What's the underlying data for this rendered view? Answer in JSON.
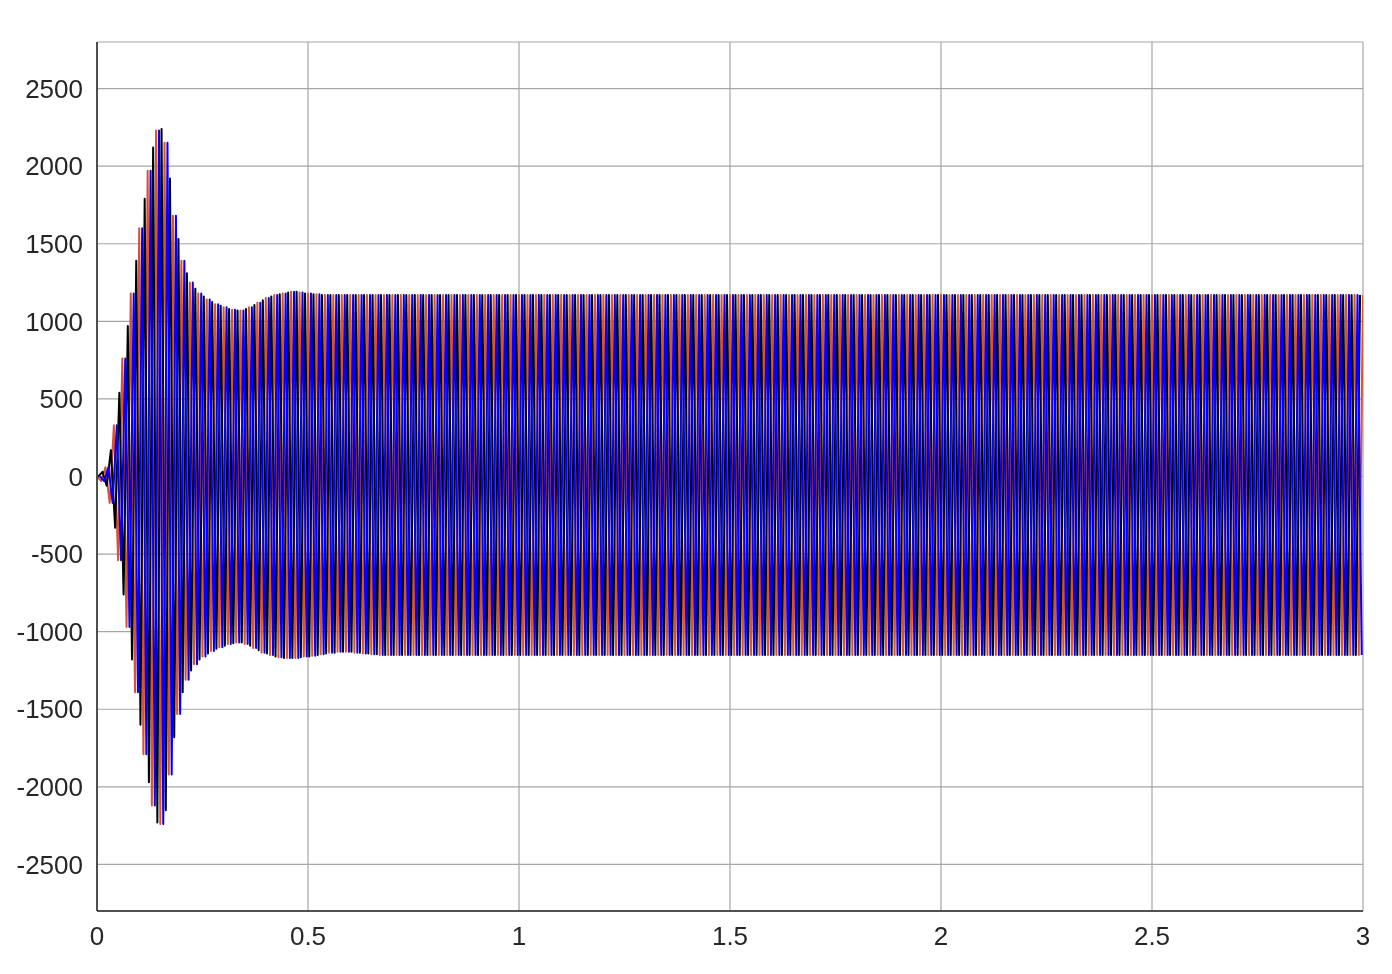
{
  "chart_data": {
    "type": "line",
    "xlim": [
      0,
      3
    ],
    "xticks": [
      0,
      0.5,
      1,
      1.5,
      2,
      2.5,
      3
    ],
    "ylim": [
      -2800,
      2800
    ],
    "yticks": [
      -2500,
      -2000,
      -1500,
      -1000,
      -500,
      0,
      500,
      1000,
      1500,
      2000,
      2500
    ],
    "grid": true,
    "series": [
      {
        "color": "#d9503f",
        "x": [
          0,
          0.01,
          0.02,
          0.03,
          0.04,
          0.05,
          0.06,
          0.07,
          0.08,
          0.09,
          0.1,
          0.11,
          0.12,
          0.13,
          0.14,
          0.15,
          0.16,
          0.17,
          0.18,
          0.19,
          0.2,
          0.21,
          0.22,
          0.23,
          0.24,
          0.25,
          0.26,
          0.27,
          0.28,
          0.29,
          0.3,
          0.31,
          0.32,
          0.33,
          0.34,
          0.35,
          0.36,
          0.37,
          0.38,
          0.39,
          0.4,
          0.41,
          0.42,
          0.43,
          0.44,
          0.45,
          0.46,
          0.47,
          0.48,
          0.49,
          0.5,
          0.51,
          0.52,
          0.53,
          0.54,
          0.55,
          0.56,
          0.57,
          0.58,
          0.59,
          0.6,
          0.61,
          0.62,
          0.63,
          0.64,
          0.65,
          0.66,
          0.67,
          0.68,
          0.69,
          0.7,
          0.71,
          0.72,
          0.73,
          0.74,
          0.75,
          0.76,
          0.77,
          0.78,
          0.79,
          0.8,
          0.81,
          0.82,
          0.83,
          0.84,
          0.85,
          0.86,
          0.87,
          0.88,
          0.89,
          0.9,
          0.91,
          0.92,
          0.93,
          0.94,
          0.95,
          0.96,
          0.97,
          0.98,
          0.99,
          1,
          1.01,
          1.02,
          1.03,
          1.04,
          1.05,
          1.06,
          1.07,
          1.08,
          1.09,
          1.1,
          1.11,
          1.12,
          1.13,
          1.14,
          1.15,
          1.16,
          1.17,
          1.18,
          1.19,
          1.2,
          1.21,
          1.22,
          1.23,
          1.24,
          1.25,
          1.26,
          1.27,
          1.28,
          1.29,
          1.3,
          1.31,
          1.32,
          1.33,
          1.34,
          1.35,
          1.36,
          1.37,
          1.38,
          1.39,
          1.4,
          1.41,
          1.42,
          1.43,
          1.44,
          1.45,
          1.46,
          1.47,
          1.48,
          1.49,
          1.5,
          1.51,
          1.52,
          1.53,
          1.54,
          1.55,
          1.56,
          1.57,
          1.58,
          1.59,
          1.6,
          1.61,
          1.62,
          1.63,
          1.64,
          1.65,
          1.66,
          1.67,
          1.68,
          1.69,
          1.7,
          1.71,
          1.72,
          1.73,
          1.74,
          1.75,
          1.76,
          1.77,
          1.78,
          1.79,
          1.8,
          1.81,
          1.82,
          1.83,
          1.84,
          1.85,
          1.86,
          1.87,
          1.88,
          1.89,
          1.9,
          1.91,
          1.92,
          1.93,
          1.94,
          1.95,
          1.96,
          1.97,
          1.98,
          1.99,
          2,
          2.01,
          2.02,
          2.03,
          2.04,
          2.05,
          2.06,
          2.07,
          2.08,
          2.09,
          2.1,
          2.11,
          2.12,
          2.13,
          2.14,
          2.15,
          2.16,
          2.17,
          2.18,
          2.19,
          2.2,
          2.21,
          2.22,
          2.23,
          2.24,
          2.25,
          2.26,
          2.27,
          2.28,
          2.29,
          2.3,
          2.31,
          2.32,
          2.33,
          2.34,
          2.35,
          2.36,
          2.37,
          2.38,
          2.39,
          2.4,
          2.41,
          2.42,
          2.43,
          2.44,
          2.45,
          2.46,
          2.47,
          2.48,
          2.49,
          2.5,
          2.51,
          2.52,
          2.53,
          2.54,
          2.55,
          2.56,
          2.57,
          2.58,
          2.59,
          2.6,
          2.61,
          2.62,
          2.63,
          2.64,
          2.65,
          2.66,
          2.67,
          2.68,
          2.69,
          2.7,
          2.71,
          2.72,
          2.73,
          2.74,
          2.75,
          2.76,
          2.77,
          2.78,
          2.79,
          2.8,
          2.81,
          2.82,
          2.83,
          2.84,
          2.85,
          2.86,
          2.87,
          2.88,
          2.89,
          2.9,
          2.91,
          2.92,
          2.93,
          2.94,
          2.95,
          2.96,
          2.97,
          2.98,
          2.99,
          3
        ],
        "values": [
          0,
          -30,
          60,
          -170,
          330,
          -540,
          760,
          -970,
          1180,
          -1390,
          1600,
          -1790,
          1970,
          -2120,
          2230,
          -2240,
          2150,
          -1920,
          1680,
          -1530,
          1390,
          -1310,
          1250,
          -1210,
          1180,
          -1160,
          1140,
          -1125,
          1110,
          -1100,
          1090,
          -1080,
          1075,
          -1070,
          1070,
          -1080,
          1090,
          -1105,
          1120,
          -1135,
          1150,
          -1150,
          1170,
          -1165,
          1180,
          -1170,
          1190,
          -1170,
          1185,
          -1160,
          1180,
          -1155,
          1175,
          -1145,
          1170,
          -1135,
          1170,
          -1130,
          1170,
          -1130,
          1170,
          -1135,
          1170,
          -1140,
          1170,
          -1145,
          1170,
          -1150,
          1170,
          -1150,
          1170,
          -1150,
          1170,
          -1150,
          1170,
          -1150,
          1170,
          -1150,
          1170,
          -1150,
          1170,
          -1150,
          1170,
          -1150,
          1170,
          -1150,
          1170,
          -1150,
          1170,
          -1150,
          1170,
          -1150,
          1170,
          -1150,
          1170,
          -1150,
          1170,
          -1150,
          1170,
          -1150,
          1170,
          -1150,
          1170,
          -1150,
          1170,
          -1150,
          1170,
          -1150,
          1170,
          -1150,
          1170,
          -1150,
          1170,
          -1150,
          1170,
          -1150,
          1170,
          -1150,
          1170,
          -1150,
          1170,
          -1150,
          1170,
          -1150,
          1170,
          -1150,
          1170,
          -1150,
          1170,
          -1150,
          1170,
          -1150,
          1170,
          -1150,
          1170,
          -1150,
          1170,
          -1150,
          1170,
          -1150,
          1170,
          -1150,
          1170,
          -1150,
          1170,
          -1150,
          1170,
          -1150,
          1170,
          -1150,
          1170,
          -1150,
          1170,
          -1150,
          1170,
          -1150,
          1170,
          -1150,
          1170,
          -1150,
          1170,
          -1150,
          1170,
          -1150,
          1170,
          -1150,
          1170,
          -1150,
          1170,
          -1150,
          1170,
          -1150,
          1170,
          -1150,
          1170,
          -1150,
          1170,
          -1150,
          1170,
          -1150,
          1170,
          -1150,
          1170,
          -1150,
          1170,
          -1150,
          1170,
          -1150,
          1170,
          -1150,
          1170,
          -1150,
          1170,
          -1150,
          1170,
          -1150,
          1170,
          -1150,
          1170,
          -1150,
          1170,
          -1150,
          1170,
          -1150,
          1170,
          -1150,
          1170,
          -1150,
          1170,
          -1150,
          1170,
          -1150,
          1170,
          -1150,
          1170,
          -1150,
          1170,
          -1150,
          1170,
          -1150,
          1170,
          -1150,
          1170,
          -1150,
          1170,
          -1150,
          1170,
          -1150,
          1170,
          -1150,
          1170,
          -1150,
          1170,
          -1150,
          1170,
          -1150,
          1170,
          -1150,
          1170,
          -1150,
          1170,
          -1150,
          1170,
          -1150,
          1170,
          -1150,
          1170,
          -1150,
          1170,
          -1150,
          1170,
          -1150,
          1170,
          -1150,
          1170,
          -1150,
          1170,
          -1150,
          1170,
          -1150,
          1170,
          -1150,
          1170,
          -1150,
          1170,
          -1150,
          1170,
          -1150,
          1170,
          -1150,
          1170,
          -1150,
          1170,
          -1150,
          1170,
          -1150,
          1170,
          -1150,
          1170,
          -1150,
          1170,
          -1150,
          1170,
          -1150,
          1170,
          -1150,
          1170,
          -1150,
          1170,
          -1150,
          1170,
          -1150,
          1170,
          -1150,
          1170,
          -1150,
          1170,
          -1150,
          1170,
          -1150,
          1170
        ]
      },
      {
        "color": "#000000",
        "x": [
          0.003,
          0.013,
          0.023,
          0.033,
          0.043,
          0.053,
          0.063,
          0.073,
          0.083,
          0.093,
          0.103,
          0.113,
          0.123,
          0.133,
          0.143,
          0.153,
          0.163,
          0.173,
          0.183,
          0.193,
          0.203,
          0.213,
          0.223,
          0.233,
          0.243,
          0.253,
          0.263,
          0.273,
          0.283,
          0.293,
          0.303,
          0.313,
          0.323,
          0.333,
          0.343,
          0.353,
          0.363,
          0.373,
          0.383,
          0.393,
          0.403,
          0.413,
          0.423,
          0.433,
          0.443,
          0.453,
          0.463,
          0.473,
          0.483,
          0.493,
          0.503,
          0.513,
          0.523,
          0.533,
          0.543,
          0.553,
          0.563,
          0.573,
          0.583,
          0.593,
          0.603,
          0.613,
          0.623,
          0.633,
          0.643,
          0.653,
          0.663,
          0.673,
          0.683,
          0.693,
          0.703,
          0.713,
          0.723,
          0.733,
          0.743,
          0.753,
          0.763,
          0.773,
          0.783,
          0.793,
          0.803,
          0.813,
          0.823,
          0.833,
          0.843,
          0.853,
          0.863,
          0.873,
          0.883,
          0.893,
          0.903,
          0.913,
          0.923,
          0.933,
          0.943,
          0.953,
          0.963,
          0.973,
          0.983,
          0.993,
          1.003,
          1.013,
          1.023,
          1.033,
          1.043,
          1.053,
          1.063,
          1.073,
          1.083,
          1.093,
          1.103,
          1.113,
          1.123,
          1.133,
          1.143,
          1.153,
          1.163,
          1.173,
          1.183,
          1.193,
          1.203,
          1.213,
          1.223,
          1.233,
          1.243,
          1.253,
          1.263,
          1.273,
          1.283,
          1.293,
          1.303,
          1.313,
          1.323,
          1.333,
          1.343,
          1.353,
          1.363,
          1.373,
          1.383,
          1.393,
          1.403,
          1.413,
          1.423,
          1.433,
          1.443,
          1.453,
          1.463,
          1.473,
          1.483,
          1.493,
          1.503,
          1.513,
          1.523,
          1.533,
          1.543,
          1.553,
          1.563,
          1.573,
          1.583,
          1.593,
          1.603,
          1.613,
          1.623,
          1.633,
          1.643,
          1.653,
          1.663,
          1.673,
          1.683,
          1.693,
          1.703,
          1.713,
          1.723,
          1.733,
          1.743,
          1.753,
          1.763,
          1.773,
          1.783,
          1.793,
          1.803,
          1.813,
          1.823,
          1.833,
          1.843,
          1.853,
          1.863,
          1.873,
          1.883,
          1.893,
          1.903,
          1.913,
          1.923,
          1.933,
          1.943,
          1.953,
          1.963,
          1.973,
          1.983,
          1.993,
          2.003,
          2.013,
          2.023,
          2.033,
          2.043,
          2.053,
          2.063,
          2.073,
          2.083,
          2.093,
          2.103,
          2.113,
          2.123,
          2.133,
          2.143,
          2.153,
          2.163,
          2.173,
          2.183,
          2.193,
          2.203,
          2.213,
          2.223,
          2.233,
          2.243,
          2.253,
          2.263,
          2.273,
          2.283,
          2.293,
          2.303,
          2.313,
          2.323,
          2.333,
          2.343,
          2.353,
          2.363,
          2.373,
          2.383,
          2.393,
          2.403,
          2.413,
          2.423,
          2.433,
          2.443,
          2.453,
          2.463,
          2.473,
          2.483,
          2.493,
          2.503,
          2.513,
          2.523,
          2.533,
          2.543,
          2.553,
          2.563,
          2.573,
          2.583,
          2.593,
          2.603,
          2.613,
          2.623,
          2.633,
          2.643,
          2.653,
          2.663,
          2.673,
          2.683,
          2.693,
          2.703,
          2.713,
          2.723,
          2.733,
          2.743,
          2.753,
          2.763,
          2.773,
          2.783,
          2.793,
          2.803,
          2.813,
          2.823,
          2.833,
          2.843,
          2.853,
          2.863,
          2.873,
          2.883,
          2.893,
          2.903,
          2.913,
          2.923,
          2.933,
          2.943,
          2.953,
          2.963,
          2.973,
          2.983,
          2.993
        ],
        "values": [
          0,
          30,
          -60,
          170,
          -330,
          540,
          -760,
          970,
          -1180,
          1390,
          -1600,
          1790,
          -1970,
          2120,
          -2230,
          2240,
          -2150,
          1920,
          -1680,
          1530,
          -1390,
          1310,
          -1250,
          1210,
          -1180,
          1160,
          -1140,
          1125,
          -1110,
          1100,
          -1090,
          1080,
          -1075,
          1070,
          -1070,
          1080,
          -1090,
          1105,
          -1120,
          1135,
          -1140,
          1160,
          -1160,
          1175,
          -1170,
          1185,
          -1170,
          1190,
          -1165,
          1180,
          -1160,
          1175,
          -1150,
          1170,
          -1140,
          1170,
          -1135,
          1170,
          -1130,
          1170,
          -1130,
          1170,
          -1135,
          1170,
          -1140,
          1170,
          -1145,
          1170,
          -1150,
          1170,
          -1150,
          1170,
          -1150,
          1170,
          -1150,
          1170,
          -1150,
          1170,
          -1150,
          1170,
          -1150,
          1170,
          -1150,
          1170,
          -1150,
          1170,
          -1150,
          1170,
          -1150,
          1170,
          -1150,
          1170,
          -1150,
          1170,
          -1150,
          1170,
          -1150,
          1170,
          -1150,
          1170,
          -1150,
          1170,
          -1150,
          1170,
          -1150,
          1170,
          -1150,
          1170,
          -1150,
          1170,
          -1150,
          1170,
          -1150,
          1170,
          -1150,
          1170,
          -1150,
          1170,
          -1150,
          1170,
          -1150,
          1170,
          -1150,
          1170,
          -1150,
          1170,
          -1150,
          1170,
          -1150,
          1170,
          -1150,
          1170,
          -1150,
          1170,
          -1150,
          1170,
          -1150,
          1170,
          -1150,
          1170,
          -1150,
          1170,
          -1150,
          1170,
          -1150,
          1170,
          -1150,
          1170,
          -1150,
          1170,
          -1150,
          1170,
          -1150,
          1170,
          -1150,
          1170,
          -1150,
          1170,
          -1150,
          1170,
          -1150,
          1170,
          -1150,
          1170,
          -1150,
          1170,
          -1150,
          1170,
          -1150,
          1170,
          -1150,
          1170,
          -1150,
          1170,
          -1150,
          1170,
          -1150,
          1170,
          -1150,
          1170,
          -1150,
          1170,
          -1150,
          1170,
          -1150,
          1170,
          -1150,
          1170,
          -1150,
          1170,
          -1150,
          1170,
          -1150,
          1170,
          -1150,
          1170,
          -1150,
          1170,
          -1150,
          1170,
          -1150,
          1170,
          -1150,
          1170,
          -1150,
          1170,
          -1150,
          1170,
          -1150,
          1170,
          -1150,
          1170,
          -1150,
          1170,
          -1150,
          1170,
          -1150,
          1170,
          -1150,
          1170,
          -1150,
          1170,
          -1150,
          1170,
          -1150,
          1170,
          -1150,
          1170,
          -1150,
          1170,
          -1150,
          1170,
          -1150,
          1170,
          -1150,
          1170,
          -1150,
          1170,
          -1150,
          1170,
          -1150,
          1170,
          -1150,
          1170,
          -1150,
          1170,
          -1150,
          1170,
          -1150,
          1170,
          -1150,
          1170,
          -1150,
          1170,
          -1150,
          1170,
          -1150,
          1170,
          -1150,
          1170,
          -1150,
          1170,
          -1150,
          1170,
          -1150,
          1170,
          -1150,
          1170,
          -1150,
          1170,
          -1150,
          1170,
          -1150,
          1170,
          -1150,
          1170,
          -1150,
          1170,
          -1150,
          1170,
          -1150,
          1170,
          -1150,
          1170,
          -1150,
          1170,
          -1150,
          1170,
          -1150,
          1170,
          -1150,
          1170,
          -1150,
          1170,
          -1150,
          1170,
          -1150,
          1170,
          -1150,
          1170
        ]
      },
      {
        "color": "#0000ff",
        "x": [
          0.007,
          0.017,
          0.027,
          0.037,
          0.047,
          0.057,
          0.067,
          0.077,
          0.087,
          0.097,
          0.107,
          0.117,
          0.127,
          0.137,
          0.147,
          0.157,
          0.167,
          0.177,
          0.187,
          0.197,
          0.207,
          0.217,
          0.227,
          0.237,
          0.247,
          0.257,
          0.267,
          0.277,
          0.287,
          0.297,
          0.307,
          0.317,
          0.327,
          0.337,
          0.347,
          0.357,
          0.367,
          0.377,
          0.387,
          0.397,
          0.407,
          0.417,
          0.427,
          0.437,
          0.447,
          0.457,
          0.467,
          0.477,
          0.487,
          0.497,
          0.507,
          0.517,
          0.527,
          0.537,
          0.547,
          0.557,
          0.567,
          0.577,
          0.587,
          0.597,
          0.607,
          0.617,
          0.627,
          0.637,
          0.647,
          0.657,
          0.667,
          0.677,
          0.687,
          0.697,
          0.707,
          0.717,
          0.727,
          0.737,
          0.747,
          0.757,
          0.767,
          0.777,
          0.787,
          0.797,
          0.807,
          0.817,
          0.827,
          0.837,
          0.847,
          0.857,
          0.867,
          0.877,
          0.887,
          0.897,
          0.907,
          0.917,
          0.927,
          0.937,
          0.947,
          0.957,
          0.967,
          0.977,
          0.987,
          0.997,
          1.007,
          1.017,
          1.027,
          1.037,
          1.047,
          1.057,
          1.067,
          1.077,
          1.087,
          1.097,
          1.107,
          1.117,
          1.127,
          1.137,
          1.147,
          1.157,
          1.167,
          1.177,
          1.187,
          1.197,
          1.207,
          1.217,
          1.227,
          1.237,
          1.247,
          1.257,
          1.267,
          1.277,
          1.287,
          1.297,
          1.307,
          1.317,
          1.327,
          1.337,
          1.347,
          1.357,
          1.367,
          1.377,
          1.387,
          1.397,
          1.407,
          1.417,
          1.427,
          1.437,
          1.447,
          1.457,
          1.467,
          1.477,
          1.487,
          1.497,
          1.507,
          1.517,
          1.527,
          1.537,
          1.547,
          1.557,
          1.567,
          1.577,
          1.587,
          1.597,
          1.607,
          1.617,
          1.627,
          1.637,
          1.647,
          1.657,
          1.667,
          1.677,
          1.687,
          1.697,
          1.707,
          1.717,
          1.727,
          1.737,
          1.747,
          1.757,
          1.767,
          1.777,
          1.787,
          1.797,
          1.807,
          1.817,
          1.827,
          1.837,
          1.847,
          1.857,
          1.867,
          1.877,
          1.887,
          1.897,
          1.907,
          1.917,
          1.927,
          1.937,
          1.947,
          1.957,
          1.967,
          1.977,
          1.987,
          1.997,
          2.007,
          2.017,
          2.027,
          2.037,
          2.047,
          2.057,
          2.067,
          2.077,
          2.087,
          2.097,
          2.107,
          2.117,
          2.127,
          2.137,
          2.147,
          2.157,
          2.167,
          2.177,
          2.187,
          2.197,
          2.207,
          2.217,
          2.227,
          2.237,
          2.247,
          2.257,
          2.267,
          2.277,
          2.287,
          2.297,
          2.307,
          2.317,
          2.327,
          2.337,
          2.347,
          2.357,
          2.367,
          2.377,
          2.387,
          2.397,
          2.407,
          2.417,
          2.427,
          2.437,
          2.447,
          2.457,
          2.467,
          2.477,
          2.487,
          2.497,
          2.507,
          2.517,
          2.527,
          2.537,
          2.547,
          2.557,
          2.567,
          2.577,
          2.587,
          2.597,
          2.607,
          2.617,
          2.627,
          2.637,
          2.647,
          2.657,
          2.667,
          2.677,
          2.687,
          2.697,
          2.707,
          2.717,
          2.727,
          2.737,
          2.747,
          2.757,
          2.767,
          2.777,
          2.787,
          2.797,
          2.807,
          2.817,
          2.827,
          2.837,
          2.847,
          2.857,
          2.867,
          2.877,
          2.887,
          2.897,
          2.907,
          2.917,
          2.927,
          2.937,
          2.947,
          2.957,
          2.967,
          2.977,
          2.987,
          2.997
        ],
        "values": [
          0,
          -30,
          60,
          -170,
          330,
          -540,
          760,
          -970,
          1180,
          -1390,
          1600,
          -1790,
          1970,
          -2120,
          2230,
          -2240,
          2150,
          -1920,
          1680,
          -1530,
          1390,
          -1310,
          1250,
          -1210,
          1180,
          -1160,
          1140,
          -1125,
          1110,
          -1100,
          1090,
          -1080,
          1075,
          -1070,
          1070,
          -1080,
          1090,
          -1105,
          1120,
          -1135,
          1150,
          -1150,
          1170,
          -1165,
          1180,
          -1170,
          1190,
          -1170,
          1185,
          -1160,
          1180,
          -1155,
          1175,
          -1145,
          1170,
          -1135,
          1170,
          -1130,
          1170,
          -1130,
          1170,
          -1135,
          1170,
          -1140,
          1170,
          -1145,
          1170,
          -1150,
          1170,
          -1150,
          1170,
          -1150,
          1170,
          -1150,
          1170,
          -1150,
          1170,
          -1150,
          1170,
          -1150,
          1170,
          -1150,
          1170,
          -1150,
          1170,
          -1150,
          1170,
          -1150,
          1170,
          -1150,
          1170,
          -1150,
          1170,
          -1150,
          1170,
          -1150,
          1170,
          -1150,
          1170,
          -1150,
          1170,
          -1150,
          1170,
          -1150,
          1170,
          -1150,
          1170,
          -1150,
          1170,
          -1150,
          1170,
          -1150,
          1170,
          -1150,
          1170,
          -1150,
          1170,
          -1150,
          1170,
          -1150,
          1170,
          -1150,
          1170,
          -1150,
          1170,
          -1150,
          1170,
          -1150,
          1170,
          -1150,
          1170,
          -1150,
          1170,
          -1150,
          1170,
          -1150,
          1170,
          -1150,
          1170,
          -1150,
          1170,
          -1150,
          1170,
          -1150,
          1170,
          -1150,
          1170,
          -1150,
          1170,
          -1150,
          1170,
          -1150,
          1170,
          -1150,
          1170,
          -1150,
          1170,
          -1150,
          1170,
          -1150,
          1170,
          -1150,
          1170,
          -1150,
          1170,
          -1150,
          1170,
          -1150,
          1170,
          -1150,
          1170,
          -1150,
          1170,
          -1150,
          1170,
          -1150,
          1170,
          -1150,
          1170,
          -1150,
          1170,
          -1150,
          1170,
          -1150,
          1170,
          -1150,
          1170,
          -1150,
          1170,
          -1150,
          1170,
          -1150,
          1170,
          -1150,
          1170,
          -1150,
          1170,
          -1150,
          1170,
          -1150,
          1170,
          -1150,
          1170,
          -1150,
          1170,
          -1150,
          1170,
          -1150,
          1170,
          -1150,
          1170,
          -1150,
          1170,
          -1150,
          1170,
          -1150,
          1170,
          -1150,
          1170,
          -1150,
          1170,
          -1150,
          1170,
          -1150,
          1170,
          -1150,
          1170,
          -1150,
          1170,
          -1150,
          1170,
          -1150,
          1170,
          -1150,
          1170,
          -1150,
          1170,
          -1150,
          1170,
          -1150,
          1170,
          -1150,
          1170,
          -1150,
          1170,
          -1150,
          1170,
          -1150,
          1170,
          -1150,
          1170,
          -1150,
          1170,
          -1150,
          1170,
          -1150,
          1170,
          -1150,
          1170,
          -1150,
          1170,
          -1150,
          1170,
          -1150,
          1170,
          -1150,
          1170,
          -1150,
          1170,
          -1150,
          1170,
          -1150,
          1170,
          -1150,
          1170,
          -1150,
          1170,
          -1150,
          1170,
          -1150,
          1170,
          -1150,
          1170,
          -1150,
          1170,
          -1150,
          1170,
          -1150,
          1170,
          -1150,
          1170,
          -1150,
          1170,
          -1150,
          1170,
          -1150,
          1170,
          -1150,
          1170,
          -1150
        ]
      }
    ]
  }
}
